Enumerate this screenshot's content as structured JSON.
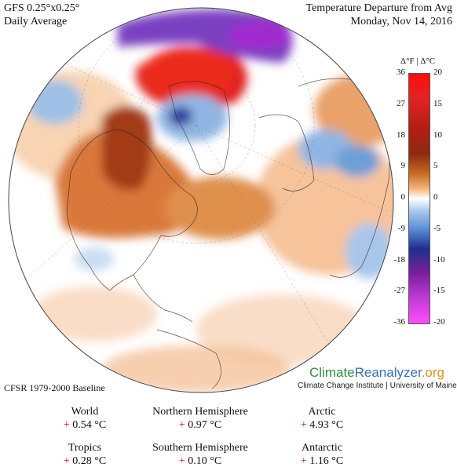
{
  "header": {
    "model": "GFS 0.25°x0.25°",
    "period": "Daily Average",
    "title": "Temperature Departure from Avg",
    "date": "Monday, Nov 14, 2016"
  },
  "legend": {
    "unit_f": "Δ°F",
    "separator": "|",
    "unit_c": "Δ°C",
    "ticks_f": [
      "36",
      "27",
      "18",
      "9",
      "0",
      "-9",
      "-18",
      "-27",
      "-36"
    ],
    "ticks_c": [
      "20",
      "15",
      "10",
      "5",
      "0",
      "-5",
      "-10",
      "-15",
      "-20"
    ]
  },
  "baseline": "CFSR 1979-2000 Baseline",
  "branding": {
    "climate": "Climate",
    "reanalyzer": "Reanalyzer",
    "org": ".org",
    "subtitle": "Climate Change Institute | University of Maine"
  },
  "stats": [
    {
      "label": "World",
      "sign": "+",
      "value": "0.54 °C"
    },
    {
      "label": "Northern Hemisphere",
      "sign": "+",
      "value": "0.97 °C"
    },
    {
      "label": "Arctic",
      "sign": "+",
      "value": "4.93 °C"
    },
    {
      "label": "Tropics",
      "sign": "+",
      "value": "0.28 °C"
    },
    {
      "label": "Southern Hemisphere",
      "sign": "+",
      "value": "0.10 °C"
    },
    {
      "label": "Antarctic",
      "sign": "+",
      "value": "1.16 °C"
    }
  ],
  "colors": {
    "warm_strong": "#e21a1a",
    "warm_mid": "#c2531b",
    "warm_light": "#f1b07a",
    "neutral": "#ffffff",
    "cool_light": "#a9c8ea",
    "cool_strong": "#2b3f9e",
    "very_cold": "#9b2cc4"
  }
}
